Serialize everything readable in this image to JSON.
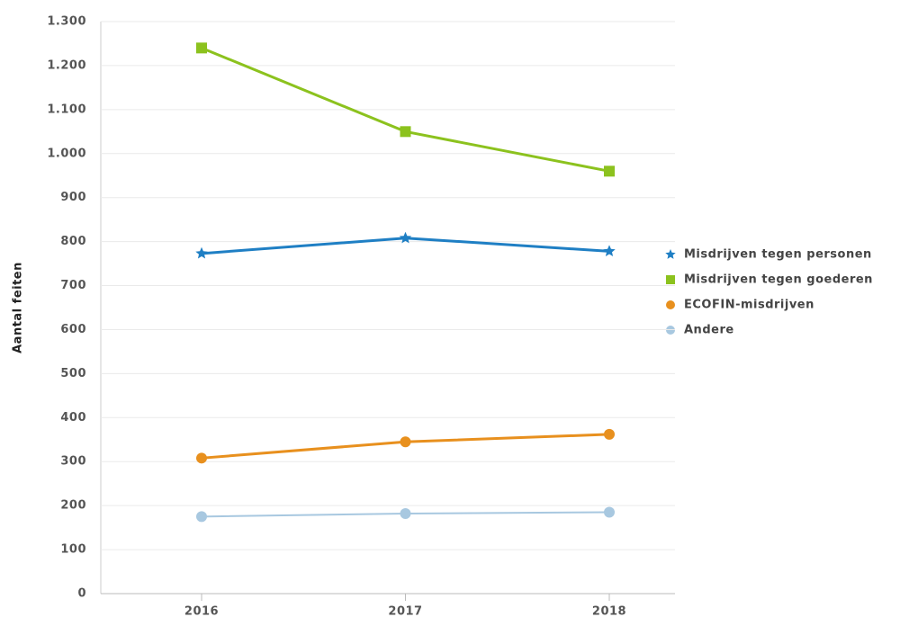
{
  "chart_data": {
    "type": "line",
    "y_label": "Aantal feiten",
    "categories": [
      "2016",
      "2017",
      "2018"
    ],
    "series": [
      {
        "name": "Misdrijven tegen personen",
        "color": "#1f7fc4",
        "marker": "star",
        "values": [
          773,
          808,
          778
        ]
      },
      {
        "name": "Misdrijven tegen goederen",
        "color": "#8cc21e",
        "marker": "square",
        "values": [
          1240,
          1050,
          960
        ]
      },
      {
        "name": "ECOFIN-misdrijven",
        "color": "#e8901e",
        "marker": "circle",
        "values": [
          308,
          345,
          362
        ]
      },
      {
        "name": "Andere",
        "color": "#a8c8e0",
        "marker": "circle",
        "values": [
          175,
          182,
          185
        ]
      }
    ],
    "ylim": [
      0,
      1300
    ],
    "yticks": [
      0,
      100,
      200,
      300,
      400,
      500,
      600,
      700,
      800,
      900,
      {
        "value": 1000,
        "label": "1.000"
      },
      {
        "value": 1100,
        "label": "1.100"
      },
      {
        "value": 1200,
        "label": "1.200"
      },
      {
        "value": 1300,
        "label": "1.300"
      }
    ],
    "grid": true,
    "legend": "right"
  }
}
